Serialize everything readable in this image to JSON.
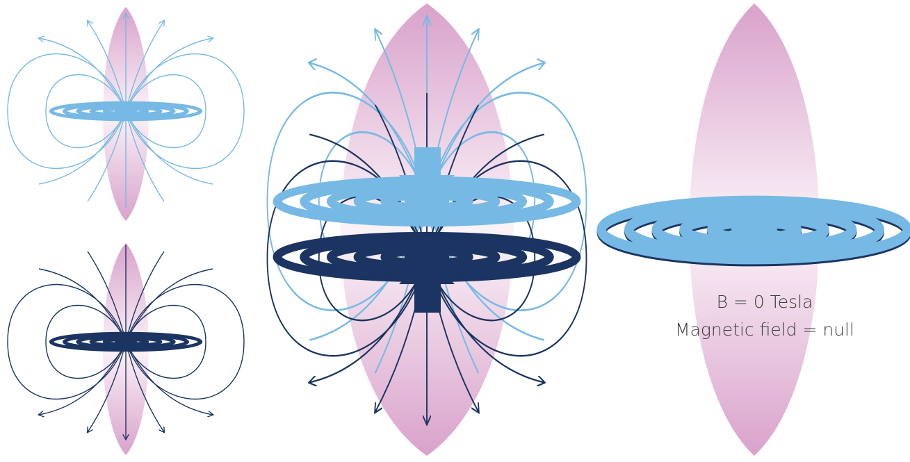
{
  "labels": {
    "field_strength": "B = 0 Tesla",
    "field_state": "Magnetic field = null"
  }
}
